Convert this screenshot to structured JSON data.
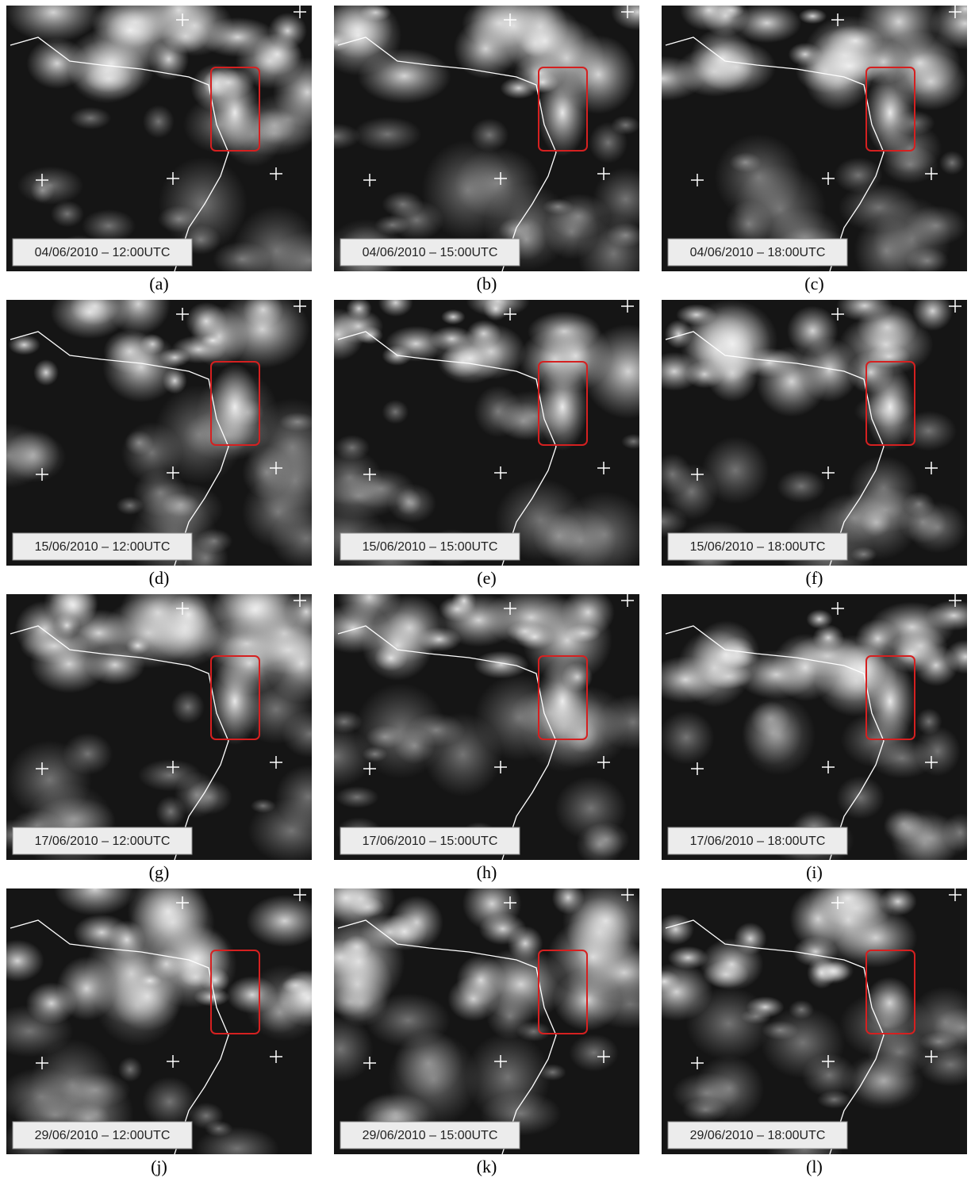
{
  "panels": [
    {
      "timestamp": "04/06/2010 – 12:00UTC",
      "caption": "(a)"
    },
    {
      "timestamp": "04/06/2010 – 15:00UTC",
      "caption": "(b)"
    },
    {
      "timestamp": "04/06/2010 – 18:00UTC",
      "caption": "(c)"
    },
    {
      "timestamp": "15/06/2010 – 12:00UTC",
      "caption": "(d)"
    },
    {
      "timestamp": "15/06/2010 – 15:00UTC",
      "caption": "(e)"
    },
    {
      "timestamp": "15/06/2010 – 18:00UTC",
      "caption": "(f)"
    },
    {
      "timestamp": "17/06/2010 – 12:00UTC",
      "caption": "(g)"
    },
    {
      "timestamp": "17/06/2010 – 15:00UTC",
      "caption": "(h)"
    },
    {
      "timestamp": "17/06/2010 – 18:00UTC",
      "caption": "(i)"
    },
    {
      "timestamp": "29/06/2010 – 12:00UTC",
      "caption": "(j)"
    },
    {
      "timestamp": "29/06/2010 – 15:00UTC",
      "caption": "(k)"
    },
    {
      "timestamp": "29/06/2010 – 18:00UTC",
      "caption": "(l)"
    }
  ]
}
